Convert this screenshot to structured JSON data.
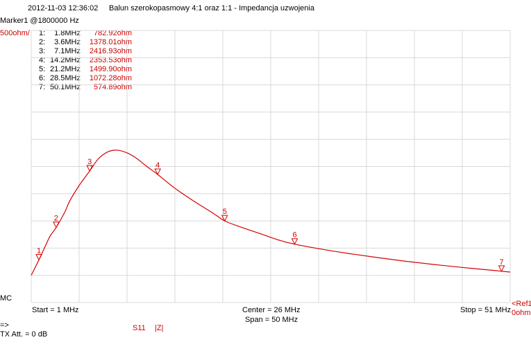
{
  "header": {
    "timestamp": "2012-11-03   12:36:02",
    "title": "Balun szerokopasmowy 4:1 oraz 1:1 - Impedancja uzwojenia",
    "marker_readout": "Marker1 @1800000 Hz"
  },
  "scale": {
    "y_scale_label": "500ohm/",
    "ref_label_line1": "<Ref1",
    "ref_label_line2": "0ohm",
    "mc_label": "MC"
  },
  "footer": {
    "start": "Start = 1 MHz",
    "center": "Center = 26 MHz",
    "span": "Span = 50 MHz",
    "stop": "Stop = 51 MHz",
    "arrow": "=>",
    "tx_att": "TX Att.    = 0 dB",
    "trace_param": "S11",
    "trace_format": "|Z|"
  },
  "markers": [
    {
      "num": "1:",
      "label": "1",
      "freq": "1.8MHz",
      "value": "782.92ohm",
      "x": 1.8,
      "y": 782.92
    },
    {
      "num": "2:",
      "label": "2",
      "freq": "3.6MHz",
      "value": "1378.01ohm",
      "x": 3.6,
      "y": 1378.01
    },
    {
      "num": "3:",
      "label": "3",
      "freq": "7.1MHz",
      "value": "2416.93ohm",
      "x": 7.1,
      "y": 2416.93
    },
    {
      "num": "4:",
      "label": "4",
      "freq": "14.2MHz",
      "value": "2353.53ohm",
      "x": 14.2,
      "y": 2353.53
    },
    {
      "num": "5:",
      "label": "5",
      "freq": "21.2MHz",
      "value": "1499.90ohm",
      "x": 21.2,
      "y": 1499.9
    },
    {
      "num": "6:",
      "label": "6",
      "freq": "28.5MHz",
      "value": "1072.28ohm",
      "x": 28.5,
      "y": 1072.28
    },
    {
      "num": "7:",
      "label": "7",
      "freq": "50.1MHz",
      "value": "574.89ohm",
      "x": 50.1,
      "y": 574.89
    }
  ],
  "colors": {
    "trace": "#d40000",
    "grid": "#d8d8d8",
    "label_red": "#cc0000"
  },
  "chart_data": {
    "type": "line",
    "title": "Balun szerokopasmowy 4:1 oraz 1:1 - Impedancja uzwojenia",
    "xlabel": "",
    "ylabel": "",
    "xlim": [
      1,
      51
    ],
    "ylim": [
      0,
      5000
    ],
    "grid": true,
    "series": [
      {
        "name": "S11 |Z|",
        "x": [
          1,
          1.8,
          2.5,
          3,
          3.6,
          4.5,
          5,
          6,
          7.1,
          8,
          9,
          10,
          11,
          12,
          13,
          14.2,
          16,
          18,
          20,
          21.2,
          23,
          25,
          27,
          28.5,
          31,
          34,
          37,
          40,
          43,
          46,
          49,
          50.1,
          51
        ],
        "y": [
          500,
          782.92,
          1050,
          1230,
          1378.01,
          1660,
          1860,
          2150,
          2416.93,
          2640,
          2770,
          2800,
          2750,
          2650,
          2510,
          2353.53,
          2100,
          1860,
          1640,
          1499.9,
          1380,
          1260,
          1140,
          1072.28,
          990,
          905,
          830,
          760,
          700,
          645,
          595,
          574.89,
          560
        ]
      }
    ]
  }
}
